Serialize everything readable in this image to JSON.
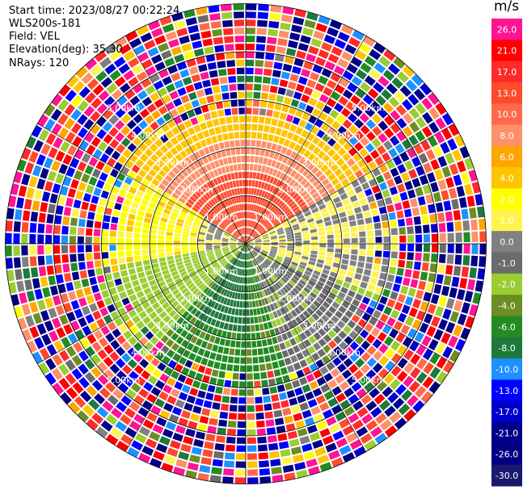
{
  "header": {
    "start_time": "Start time: 2023/08/27 00:22:24",
    "instrument": "WLS200s-181",
    "field": "Field: VEL",
    "elevation": "Elevation(deg): 35.30",
    "nrays": "NRays: 120"
  },
  "colorbar": {
    "unit": "m/s",
    "ticks": [
      "26.0",
      "21.0",
      "17.0",
      "13.0",
      "10.0",
      "8.0",
      "6.0",
      "4.0",
      "2.0",
      "1.0",
      "0.0",
      "-1.0",
      "-2.0",
      "-4.0",
      "-6.0",
      "-8.0",
      "-10.0",
      "-13.0",
      "-17.0",
      "-21.0",
      "-26.0",
      "-30.0"
    ],
    "colors": [
      "#ff1493",
      "#ff0000",
      "#ff2a2a",
      "#ff4b2b",
      "#ff6b4a",
      "#ff9068",
      "#ffa500",
      "#ffc400",
      "#ffff00",
      "#fff44f",
      "#808080",
      "#6b6b6b",
      "#9acd32",
      "#6b8e23",
      "#228b22",
      "#1e7a3a",
      "#1e90ff",
      "#0000ff",
      "#0000cd",
      "#00008b",
      "#000080",
      "#191970"
    ]
  },
  "chart_data": {
    "type": "ppi",
    "field": "VEL",
    "units": "m/s",
    "nrays": 120,
    "elevation_deg": 35.3,
    "range_rings_km": [
      1.0,
      2.0,
      3.0,
      4.0,
      5.0
    ],
    "ring_labels": [
      "1.00km",
      "2.00km",
      "3.00km",
      "4.00km",
      "5.00km"
    ],
    "max_range_km": 5.0,
    "vmin": -30.0,
    "vmax": 26.0,
    "sectors": [
      {
        "region": "north",
        "dominant_velocity": 12.0
      },
      {
        "region": "east",
        "dominant_velocity": 0.0
      },
      {
        "region": "south",
        "dominant_velocity": -7.0
      },
      {
        "region": "west",
        "dominant_velocity": 1.5
      },
      {
        "region": "far range",
        "dominant_velocity": "noise"
      }
    ]
  }
}
